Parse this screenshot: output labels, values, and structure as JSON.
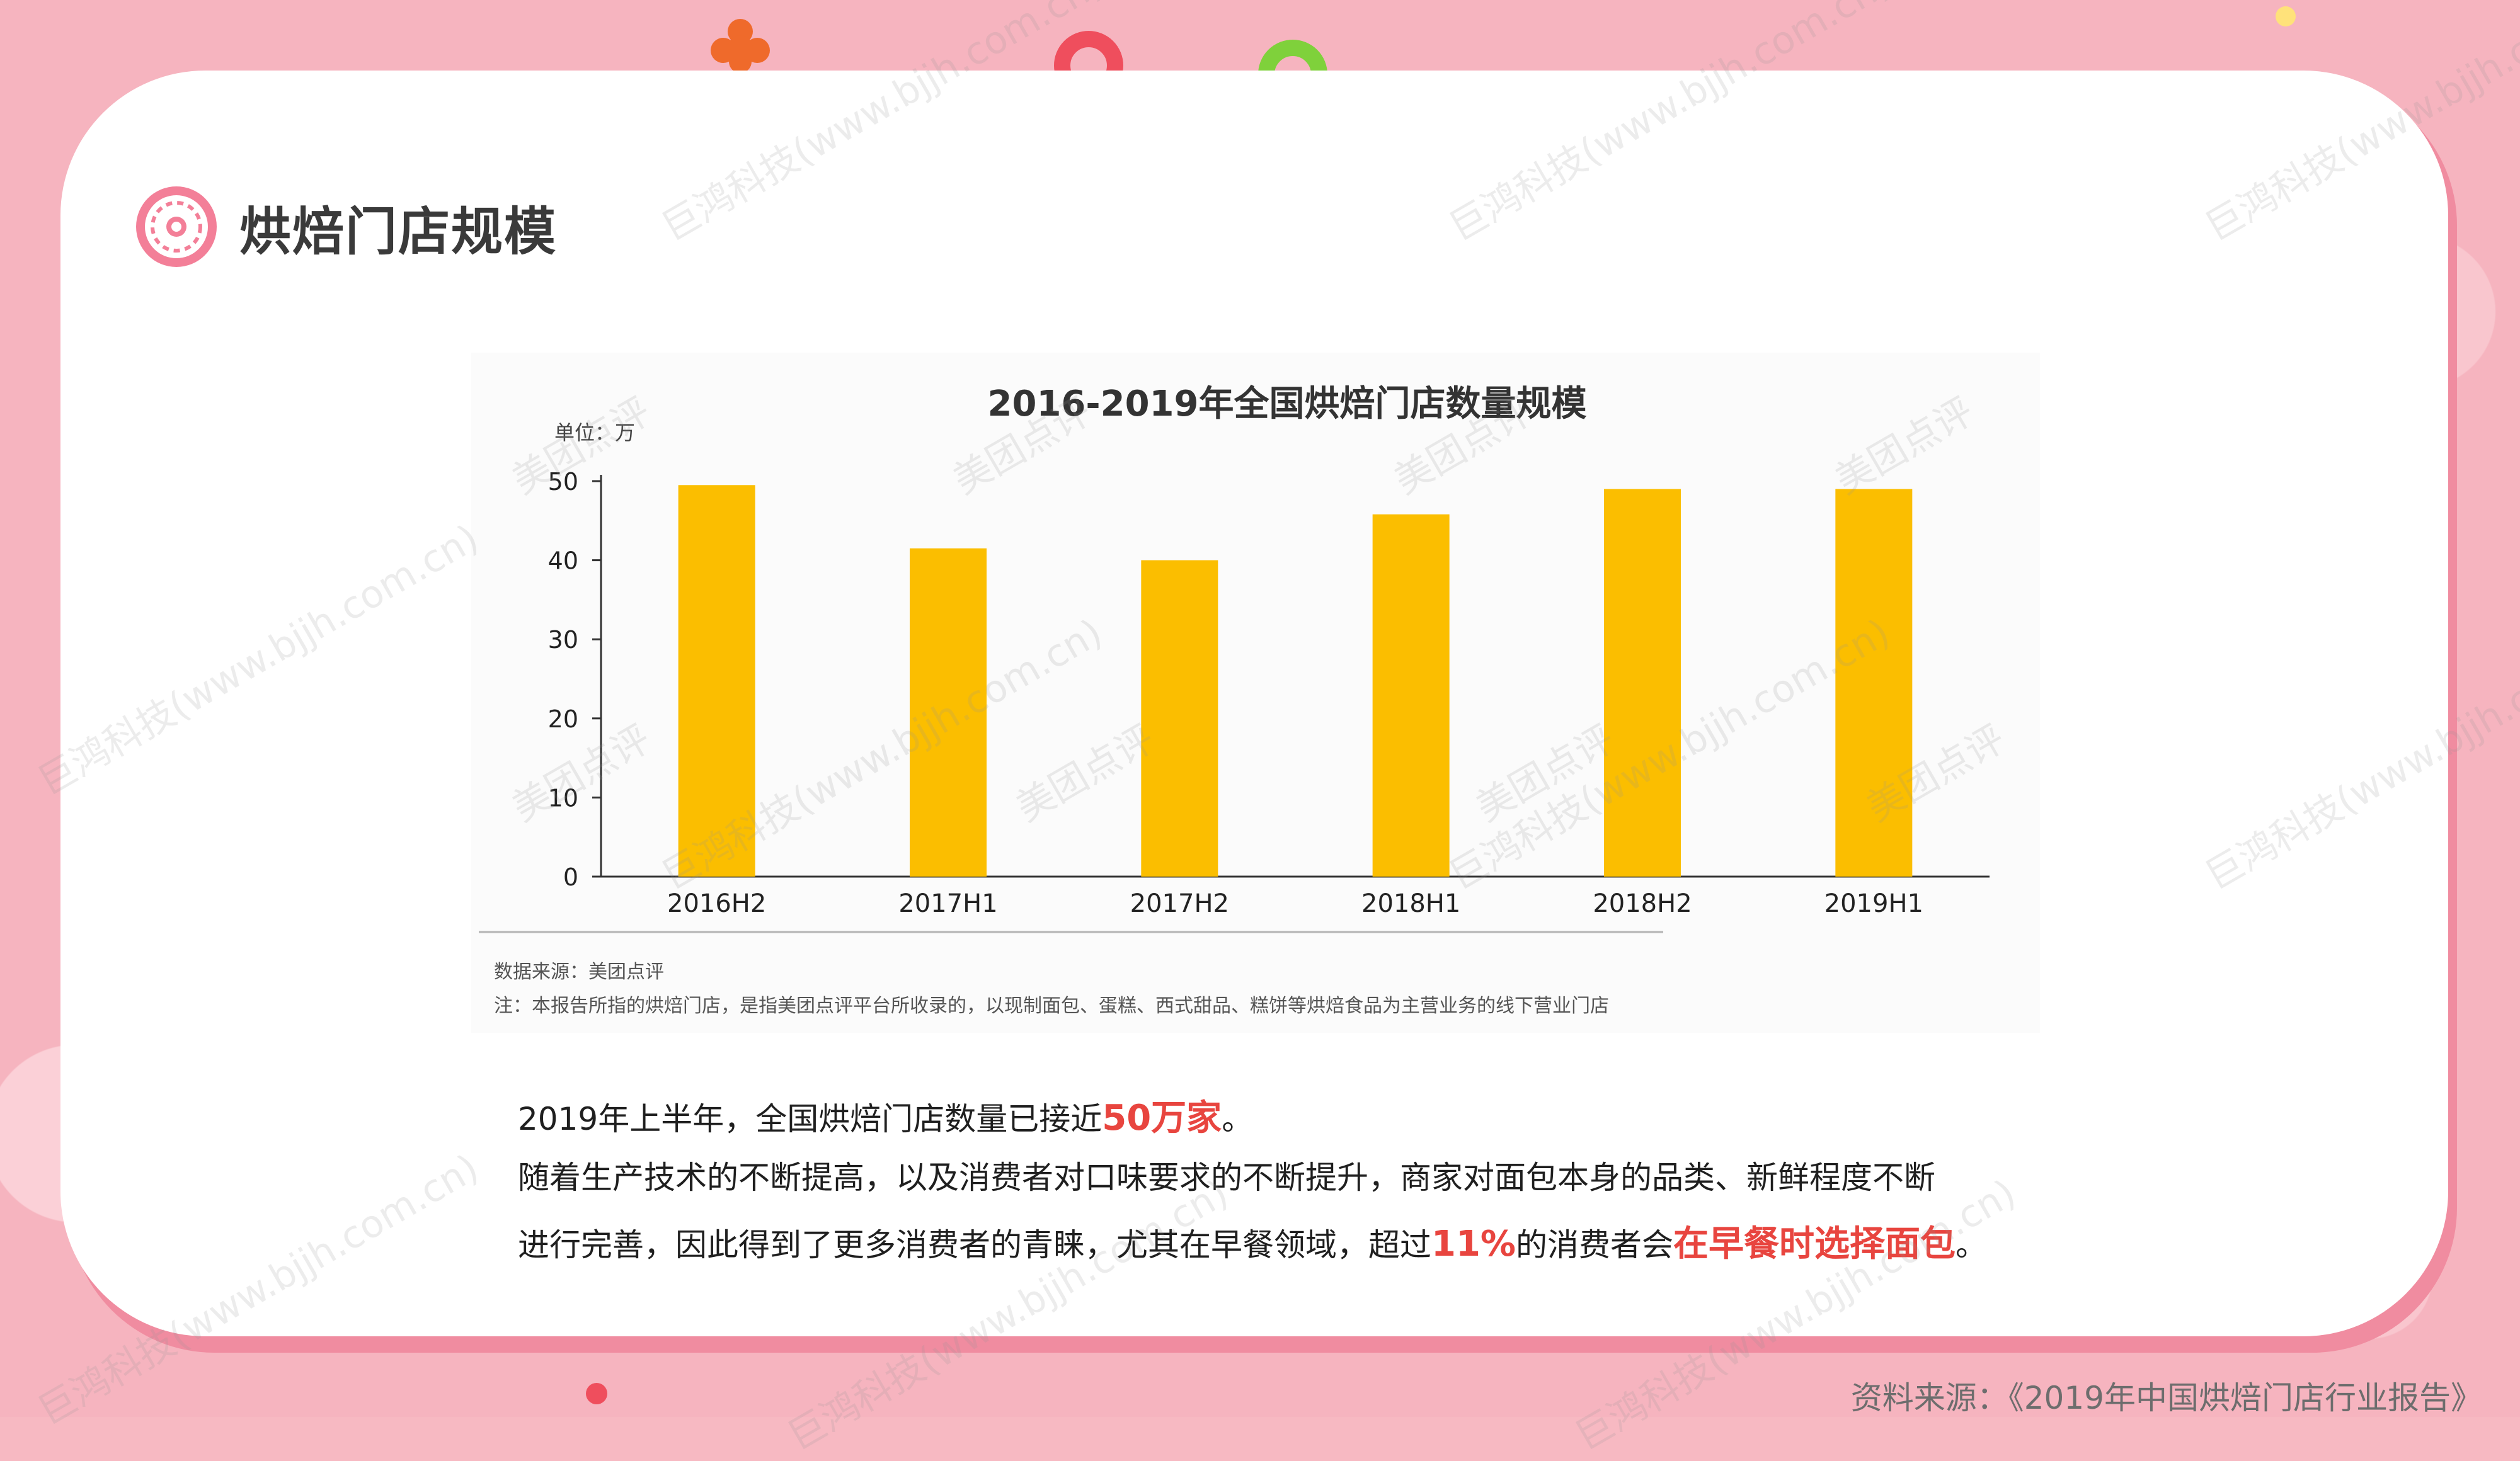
{
  "header": {
    "title": "烘焙门店规模",
    "icon": "donut-icon"
  },
  "figure": {
    "unit_label": "单位：万",
    "source_line": "数据来源：美团点评",
    "note_line": "注：本报告所指的烘焙门店，是指美团点评平台所收录的，以现制面包、蛋糕、西式甜品、糕饼等烘焙食品为主营业务的线下营业门店"
  },
  "chart_data": {
    "type": "bar",
    "title": "2016-2019年全国烘焙门店数量规模",
    "categories": [
      "2016H2",
      "2017H1",
      "2017H2",
      "2018H1",
      "2018H2",
      "2019H1"
    ],
    "values": [
      49.5,
      41.5,
      40,
      45.8,
      49,
      49
    ],
    "ylim": [
      0,
      50
    ],
    "yticks": [
      0,
      10,
      20,
      30,
      40,
      50
    ],
    "xlabel": "",
    "ylabel": "",
    "bar_color": "#fbbe00",
    "grid": false
  },
  "body": {
    "line1_a": "2019年上半年，全国烘焙门店数量已接近",
    "line1_hl": "50万家",
    "line1_b": "。",
    "line2": "随着生产技术的不断提高，以及消费者对口味要求的不断提升，商家对面包本身的品类、新鲜程度不断",
    "line3_a": "进行完善，因此得到了更多消费者的青睐，尤其在早餐领域，超过",
    "line3_hl1": "11%",
    "line3_b": "的消费者会",
    "line3_hl2": "在早餐时选择面包",
    "line3_c": "。"
  },
  "footer": {
    "source": "资料来源：《2019年中国烘焙门店行业报告》"
  },
  "watermarks": {
    "text_a": "巨鸿科技(www.bjjh.com.cn)",
    "text_b": "美团点评"
  },
  "colors": {
    "accent_red": "#e8453f",
    "card_bg": "#ffffff",
    "page_bg": "#f6b4bf",
    "bar": "#fbbe00"
  }
}
